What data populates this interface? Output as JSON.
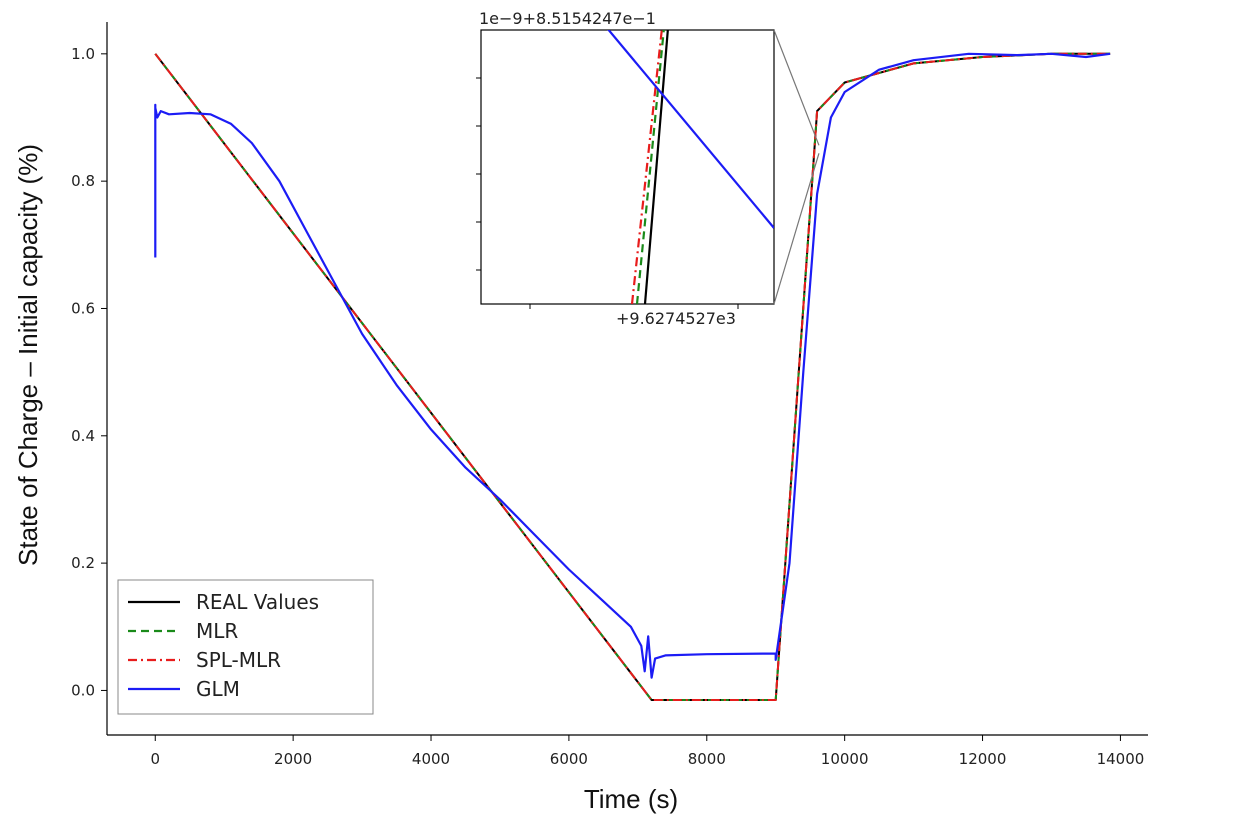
{
  "chart_data": {
    "type": "line",
    "xlabel": "Time (s)",
    "ylabel": "State of Charge – Initial capacity (%)",
    "xlim": [
      -700,
      14400
    ],
    "ylim": [
      -0.07,
      1.05
    ],
    "xticks": [
      0,
      2000,
      4000,
      6000,
      8000,
      10000,
      12000,
      14000
    ],
    "xtick_labels": [
      "0",
      "2000",
      "4000",
      "6000",
      "8000",
      "10000",
      "12000",
      "14000"
    ],
    "yticks": [
      0.0,
      0.2,
      0.4,
      0.6,
      0.8,
      1.0
    ],
    "ytick_labels": [
      "0.0",
      "0.2",
      "0.4",
      "0.6",
      "0.8",
      "1.0"
    ],
    "legend_position": "bottom-left",
    "series": [
      {
        "name": "REAL Values",
        "color": "#000000",
        "style": "solid",
        "x": [
          0,
          7200,
          9000,
          9600,
          10000,
          11000,
          12000,
          13000,
          13850
        ],
        "y": [
          1.0,
          -0.015,
          -0.015,
          0.91,
          0.955,
          0.985,
          0.995,
          1.0,
          1.0
        ]
      },
      {
        "name": "MLR",
        "color": "#1a8a1a",
        "style": "dashed",
        "x": [
          0,
          7200,
          9000,
          9600,
          10000,
          11000,
          12000,
          13000,
          13850
        ],
        "y": [
          1.0,
          -0.015,
          -0.015,
          0.91,
          0.955,
          0.985,
          0.995,
          1.0,
          1.0
        ]
      },
      {
        "name": "SPL-MLR",
        "color": "#e81c1c",
        "style": "dashdot",
        "x": [
          0,
          7200,
          9000,
          9600,
          10000,
          11000,
          12000,
          13000,
          13850
        ],
        "y": [
          1.0,
          -0.015,
          -0.015,
          0.91,
          0.955,
          0.985,
          0.995,
          1.0,
          1.0
        ]
      },
      {
        "name": "GLM",
        "color": "#1c1cf5",
        "style": "solid",
        "x": [
          0,
          0,
          0,
          30,
          80,
          200,
          500,
          800,
          1100,
          1400,
          1800,
          2200,
          2600,
          3000,
          3500,
          4000,
          4500,
          5000,
          5500,
          6000,
          6500,
          6900,
          7050,
          7100,
          7150,
          7200,
          7250,
          7400,
          8000,
          9000,
          9000,
          9200,
          9400,
          9600,
          9800,
          10000,
          10500,
          11000,
          11800,
          12500,
          13000,
          13500,
          13850
        ],
        "y": [
          0.68,
          0.92,
          0.915,
          0.9,
          0.91,
          0.905,
          0.907,
          0.905,
          0.89,
          0.86,
          0.8,
          0.72,
          0.64,
          0.56,
          0.48,
          0.41,
          0.35,
          0.3,
          0.245,
          0.19,
          0.14,
          0.1,
          0.07,
          0.03,
          0.085,
          0.02,
          0.05,
          0.055,
          0.057,
          0.058,
          0.048,
          0.2,
          0.5,
          0.78,
          0.9,
          0.94,
          0.975,
          0.99,
          1.0,
          0.998,
          1.0,
          0.995,
          1.0
        ]
      }
    ],
    "inset": {
      "top_label": "1e−9+8.5154247e−1",
      "bottom_label": "+9.6274527e3",
      "zoom_center": [
        9627,
        0.85
      ]
    }
  }
}
